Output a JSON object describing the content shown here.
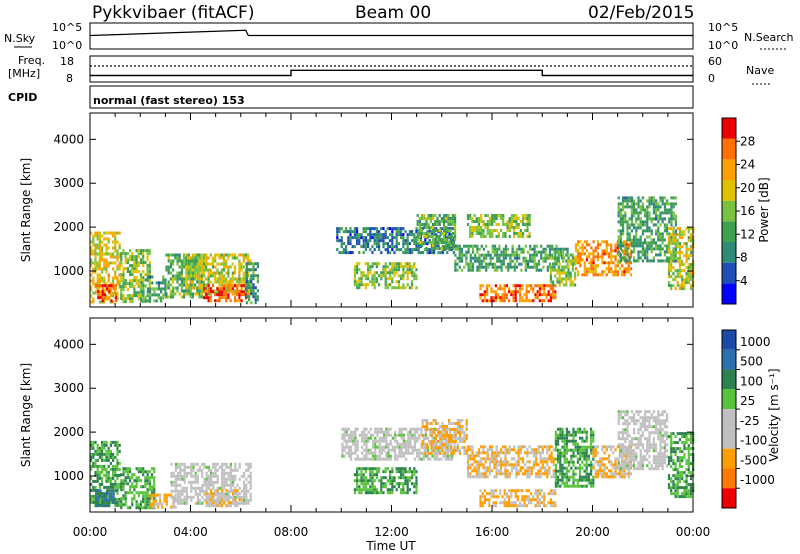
{
  "header": {
    "station": "Pykkvibaer (fitACF)",
    "beam": "Beam 00",
    "date": "02/Feb/2015"
  },
  "noise_panel": {
    "left_label": "N.Sky",
    "right_label": "N.Search",
    "left_ticks": [
      "10^5",
      "10^0"
    ],
    "right_ticks": [
      "10^5",
      "10^0"
    ]
  },
  "freq_panel": {
    "left_label_line1": "Freq.",
    "left_label_line2": "[MHz]",
    "left_ticks": [
      "18",
      "8"
    ],
    "right_ticks": [
      "60",
      "0"
    ],
    "right_label": "Nave"
  },
  "cpid_panel": {
    "label": "CPID",
    "value": "normal (fast stereo) 153"
  },
  "colors": {
    "power_scale": [
      "#0000ff",
      "#1f4fb4",
      "#2f8a78",
      "#3fa050",
      "#77c23e",
      "#e0c000",
      "#ffa000",
      "#ff7000",
      "#ee0000"
    ],
    "velocity_scale": [
      "#1b4aa8",
      "#2e6fb0",
      "#2d8050",
      "#57c43a",
      "#c0c0c0",
      "#c0c0c0",
      "#ff9e00",
      "#ff7a00",
      "#ee0000"
    ]
  },
  "chart_data": [
    {
      "type": "heatmap",
      "name_ref": "power",
      "ylabel": "Slant Range [km]",
      "y_ticks": [
        1000,
        2000,
        3000,
        4000
      ],
      "ylim": [
        180,
        4600
      ],
      "x_ticks": [
        "00:00",
        "04:00",
        "08:00",
        "12:00",
        "16:00",
        "20:00",
        "00:00"
      ],
      "xlim_hours": [
        0,
        24
      ],
      "colorbar": {
        "label": "Power [dB]",
        "ticks": [
          4,
          8,
          12,
          16,
          20,
          24,
          28
        ],
        "range": [
          0,
          32
        ]
      },
      "regions": [
        {
          "t": [
            0.0,
            1.2
          ],
          "r": [
            300,
            1900
          ],
          "value": 20
        },
        {
          "t": [
            0.2,
            1.0
          ],
          "r": [
            300,
            700
          ],
          "value": 28
        },
        {
          "t": [
            1.2,
            2.4
          ],
          "r": [
            300,
            1500
          ],
          "value": 16
        },
        {
          "t": [
            2.0,
            3.0
          ],
          "r": [
            300,
            900
          ],
          "value": 12
        },
        {
          "t": [
            3.0,
            4.6
          ],
          "r": [
            400,
            1400
          ],
          "value": 14
        },
        {
          "t": [
            3.8,
            6.4
          ],
          "r": [
            500,
            1400
          ],
          "value": 18
        },
        {
          "t": [
            4.5,
            6.2
          ],
          "r": [
            300,
            700
          ],
          "value": 28
        },
        {
          "t": [
            6.2,
            6.7
          ],
          "r": [
            300,
            1200
          ],
          "value": 10
        },
        {
          "t": [
            9.8,
            14.5
          ],
          "r": [
            1400,
            2000
          ],
          "value": 8
        },
        {
          "t": [
            10.5,
            13.0
          ],
          "r": [
            600,
            1200
          ],
          "value": 16
        },
        {
          "t": [
            13.0,
            14.5
          ],
          "r": [
            1500,
            2300
          ],
          "value": 14
        },
        {
          "t": [
            14.5,
            19.0
          ],
          "r": [
            1000,
            1600
          ],
          "value": 12
        },
        {
          "t": [
            15.0,
            17.5
          ],
          "r": [
            1800,
            2300
          ],
          "value": 16
        },
        {
          "t": [
            15.5,
            18.5
          ],
          "r": [
            350,
            700
          ],
          "value": 26
        },
        {
          "t": [
            18.3,
            19.3
          ],
          "r": [
            700,
            1400
          ],
          "value": 16
        },
        {
          "t": [
            19.3,
            21.5
          ],
          "r": [
            900,
            1700
          ],
          "value": 24
        },
        {
          "t": [
            21.0,
            23.3
          ],
          "r": [
            1200,
            2700
          ],
          "value": 12
        },
        {
          "t": [
            23.0,
            24.0
          ],
          "r": [
            600,
            2000
          ],
          "value": 18
        }
      ]
    },
    {
      "type": "heatmap",
      "name_ref": "velocity",
      "ylabel": "Slant Range [km]",
      "y_ticks": [
        1000,
        2000,
        3000,
        4000
      ],
      "ylim": [
        180,
        4600
      ],
      "x_ticks": [
        "00:00",
        "04:00",
        "08:00",
        "12:00",
        "16:00",
        "20:00",
        "00:00"
      ],
      "xlim_hours": [
        0,
        24
      ],
      "xlabel": "Time UT",
      "colorbar": {
        "label": "Velocity [m s⁻¹]",
        "ticks": [
          "1000",
          "500",
          "100",
          "25",
          "-25",
          "-100",
          "-500",
          "-1000"
        ]
      },
      "regions": [
        {
          "t": [
            0.0,
            1.2
          ],
          "r": [
            300,
            1800
          ],
          "value": 100
        },
        {
          "t": [
            0.2,
            1.0
          ],
          "r": [
            300,
            700
          ],
          "value": 500
        },
        {
          "t": [
            1.2,
            2.6
          ],
          "r": [
            300,
            1200
          ],
          "value": 100
        },
        {
          "t": [
            2.4,
            3.4
          ],
          "r": [
            300,
            600
          ],
          "value": -100
        },
        {
          "t": [
            3.2,
            6.4
          ],
          "r": [
            400,
            1300
          ],
          "value": 0
        },
        {
          "t": [
            4.6,
            6.0
          ],
          "r": [
            300,
            700
          ],
          "value": -100
        },
        {
          "t": [
            10.0,
            14.5
          ],
          "r": [
            1400,
            2100
          ],
          "value": 0
        },
        {
          "t": [
            10.5,
            13.0
          ],
          "r": [
            600,
            1200
          ],
          "value": 100
        },
        {
          "t": [
            13.2,
            15.0
          ],
          "r": [
            1500,
            2300
          ],
          "value": -100
        },
        {
          "t": [
            15.0,
            18.5
          ],
          "r": [
            1000,
            1700
          ],
          "value": -100
        },
        {
          "t": [
            15.5,
            18.5
          ],
          "r": [
            350,
            700
          ],
          "value": -100
        },
        {
          "t": [
            18.5,
            20.0
          ],
          "r": [
            800,
            2100
          ],
          "value": 100
        },
        {
          "t": [
            20.0,
            21.5
          ],
          "r": [
            1000,
            1700
          ],
          "value": -100
        },
        {
          "t": [
            21.0,
            23.0
          ],
          "r": [
            1200,
            2500
          ],
          "value": 0
        },
        {
          "t": [
            23.0,
            24.0
          ],
          "r": [
            500,
            2000
          ],
          "value": 100
        }
      ]
    }
  ],
  "summary_lines": {
    "noise_sky": [
      [
        0,
        2.6
      ],
      [
        6.2,
        3.6
      ],
      [
        6.3,
        2.6
      ],
      [
        12.0,
        2.6
      ],
      [
        24,
        2.6
      ]
    ],
    "freq_solid": [
      [
        0,
        10.5
      ],
      [
        8.0,
        10.5
      ],
      [
        8.0,
        12.5
      ],
      [
        18.0,
        12.5
      ],
      [
        18.0,
        10.5
      ],
      [
        24,
        10.5
      ]
    ],
    "nave_dotted": 37
  }
}
